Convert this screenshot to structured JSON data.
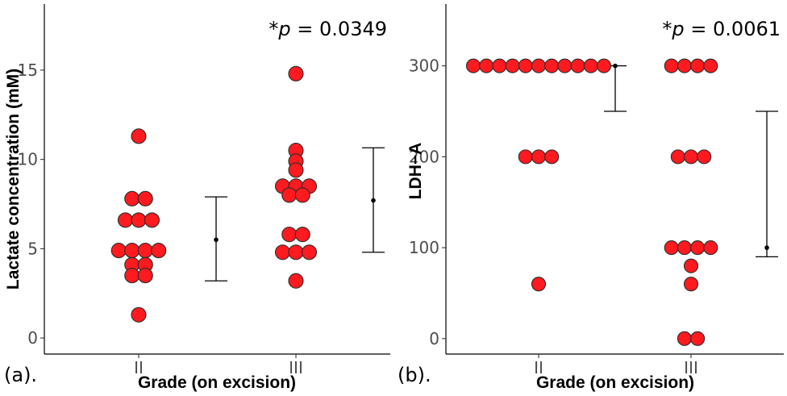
{
  "chart_data": [
    {
      "panel_label": "(a).",
      "type": "scatter",
      "title": "",
      "xlabel": "Grade (on excision)",
      "ylabel": "Lactate concentration (mM)",
      "categories": [
        "II",
        "III"
      ],
      "ylim": [
        -0.9,
        18.7
      ],
      "yticks": [
        0,
        5,
        10,
        15
      ],
      "p_value": {
        "prefix": "*",
        "symbol": "p",
        "text": " = 0.0349"
      },
      "groups": [
        {
          "name": "II",
          "values": [
            11.3,
            7.8,
            7.8,
            6.6,
            6.6,
            6.6,
            4.9,
            4.9,
            4.9,
            4.9,
            4.1,
            4.1,
            3.5,
            3.5,
            1.3
          ]
        },
        {
          "name": "III",
          "values": [
            14.8,
            10.5,
            9.9,
            9.4,
            8.5,
            8.5,
            8.5,
            8.0,
            8.0,
            5.8,
            5.8,
            4.8,
            4.8,
            4.8,
            3.2
          ]
        }
      ],
      "summary": [
        {
          "category": "II",
          "mean": 5.5,
          "lower": 3.2,
          "upper": 7.9
        },
        {
          "category": "III",
          "mean": 7.7,
          "lower": 4.8,
          "upper": 10.65
        }
      ]
    },
    {
      "panel_label": "(b).",
      "type": "scatter",
      "title": "",
      "xlabel": "Grade (on excision)",
      "ylabel": "LDH−A",
      "categories": [
        "II",
        "III"
      ],
      "ylim": [
        -17,
        368
      ],
      "yticks": [
        0,
        100,
        200,
        300
      ],
      "p_value": {
        "prefix": "*",
        "symbol": "p",
        "text": " = 0.0061"
      },
      "groups": [
        {
          "name": "II",
          "values": [
            300,
            300,
            300,
            300,
            300,
            300,
            300,
            300,
            300,
            300,
            300,
            200,
            200,
            200,
            60
          ]
        },
        {
          "name": "III",
          "values": [
            300,
            300,
            300,
            300,
            200,
            200,
            200,
            100,
            100,
            100,
            100,
            80,
            60,
            0,
            0
          ]
        }
      ],
      "summary": [
        {
          "category": "II",
          "mean": 300,
          "lower": 250,
          "upper": 300
        },
        {
          "category": "III",
          "mean": 100,
          "lower": 90,
          "upper": 250
        }
      ]
    }
  ]
}
